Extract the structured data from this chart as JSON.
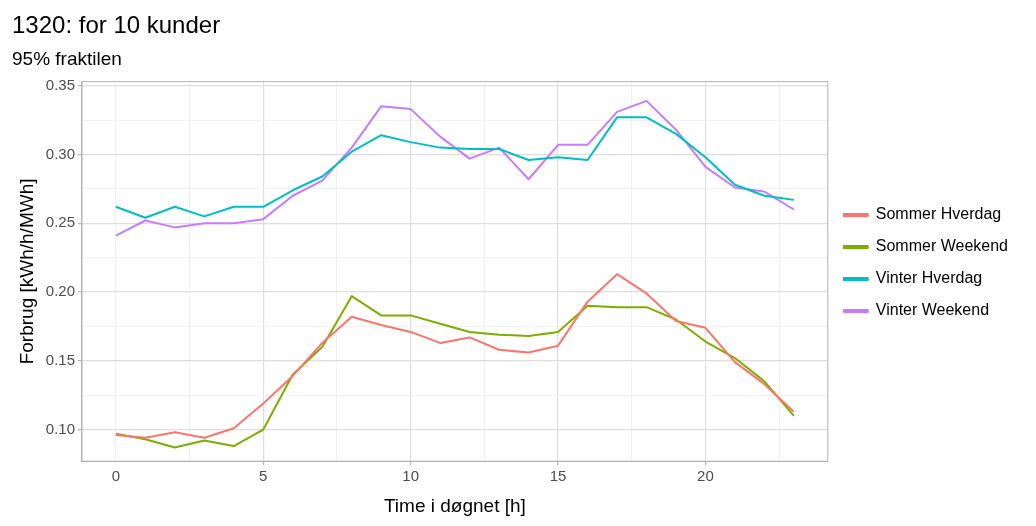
{
  "chart_data": {
    "type": "line",
    "title": "1320: for 10 kunder",
    "subtitle": "95% fraktilen",
    "xlabel": "Time i døgnet [h]",
    "ylabel": "Forbrug [kWh/h/MWh]",
    "x": [
      0,
      1,
      2,
      3,
      4,
      5,
      6,
      7,
      8,
      9,
      10,
      11,
      12,
      13,
      14,
      15,
      16,
      17,
      18,
      19,
      20,
      21,
      22,
      23
    ],
    "series": [
      {
        "name": "Sommer Hverdag",
        "color": "#f8766d",
        "values": [
          0.096,
          0.094,
          0.098,
          0.094,
          0.101,
          0.119,
          0.139,
          0.163,
          0.182,
          0.176,
          0.171,
          0.163,
          0.167,
          0.158,
          0.156,
          0.161,
          0.193,
          0.213,
          0.199,
          0.179,
          0.174,
          0.149,
          0.133,
          0.113
        ]
      },
      {
        "name": "Sommer Weekend",
        "color": "#7cae00",
        "values": [
          0.097,
          0.093,
          0.087,
          0.092,
          0.088,
          0.1,
          0.14,
          0.16,
          0.197,
          0.183,
          0.183,
          0.177,
          0.171,
          0.169,
          0.168,
          0.171,
          0.19,
          0.189,
          0.189,
          0.18,
          0.164,
          0.152,
          0.135,
          0.11
        ]
      },
      {
        "name": "Vinter Hverdag",
        "color": "#00bfc4",
        "values": [
          0.262,
          0.254,
          0.262,
          0.255,
          0.262,
          0.262,
          0.274,
          0.284,
          0.302,
          0.314,
          0.309,
          0.305,
          0.304,
          0.304,
          0.296,
          0.298,
          0.296,
          0.327,
          0.327,
          0.315,
          0.298,
          0.278,
          0.27,
          0.267
        ]
      },
      {
        "name": "Vinter Weekend",
        "color": "#c77cff",
        "values": [
          0.241,
          0.252,
          0.247,
          0.25,
          0.25,
          0.253,
          0.27,
          0.281,
          0.305,
          0.335,
          0.333,
          0.313,
          0.297,
          0.305,
          0.282,
          0.307,
          0.307,
          0.331,
          0.339,
          0.318,
          0.291,
          0.276,
          0.273,
          0.26
        ]
      }
    ],
    "xlim": [
      -1.15,
      24.15
    ],
    "xticks": [
      0,
      {
        "value": 2.5,
        "label": null
      },
      5,
      {
        "value": 7.5,
        "label": null
      },
      10,
      {
        "value": 12.5,
        "label": null
      },
      15,
      {
        "value": 17.5,
        "label": null
      },
      20,
      {
        "value": 22.5,
        "label": null
      }
    ],
    "ylim": [
      0.077,
      0.353
    ],
    "yticks": [
      {
        "value": 0.1,
        "label": "0.10"
      },
      {
        "value": 0.125,
        "label": null
      },
      {
        "value": 0.15,
        "label": "0.15"
      },
      {
        "value": 0.175,
        "label": null
      },
      {
        "value": 0.2,
        "label": "0.20"
      },
      {
        "value": 0.225,
        "label": null
      },
      {
        "value": 0.25,
        "label": "0.25"
      },
      {
        "value": 0.275,
        "label": null
      },
      {
        "value": 0.3,
        "label": "0.30"
      },
      {
        "value": 0.325,
        "label": null
      },
      {
        "value": 0.35,
        "label": "0.35"
      }
    ],
    "grid": true,
    "legend": "right",
    "marker": "none",
    "line_style": "solid"
  }
}
